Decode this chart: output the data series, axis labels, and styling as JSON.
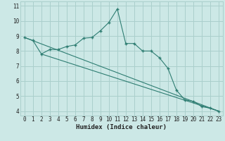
{
  "xlabel": "Humidex (Indice chaleur)",
  "bg_color": "#cce8e6",
  "grid_color": "#aacfcc",
  "line_color": "#2e7d72",
  "marker_color": "#2e7d72",
  "xlim": [
    -0.5,
    23.5
  ],
  "ylim": [
    3.7,
    11.3
  ],
  "xticks": [
    0,
    1,
    2,
    3,
    4,
    5,
    6,
    7,
    8,
    9,
    10,
    11,
    12,
    13,
    14,
    15,
    16,
    17,
    18,
    19,
    20,
    21,
    22,
    23
  ],
  "yticks": [
    4,
    5,
    6,
    7,
    8,
    9,
    10,
    11
  ],
  "main_line": {
    "x": [
      0,
      1,
      2,
      3,
      4,
      5,
      6,
      7,
      8,
      9,
      10,
      11,
      12,
      13,
      14,
      15,
      16,
      17,
      18,
      19,
      20,
      21,
      22,
      23
    ],
    "y": [
      8.9,
      8.7,
      7.8,
      8.1,
      8.1,
      8.3,
      8.4,
      8.85,
      8.9,
      9.35,
      9.9,
      10.8,
      8.5,
      8.5,
      8.0,
      8.0,
      7.55,
      6.85,
      5.4,
      4.75,
      4.65,
      4.3,
      4.2,
      4.0
    ]
  },
  "line2": {
    "x": [
      0,
      23
    ],
    "y": [
      8.9,
      4.0
    ]
  },
  "line3": {
    "x": [
      2,
      23
    ],
    "y": [
      7.8,
      4.0
    ]
  }
}
